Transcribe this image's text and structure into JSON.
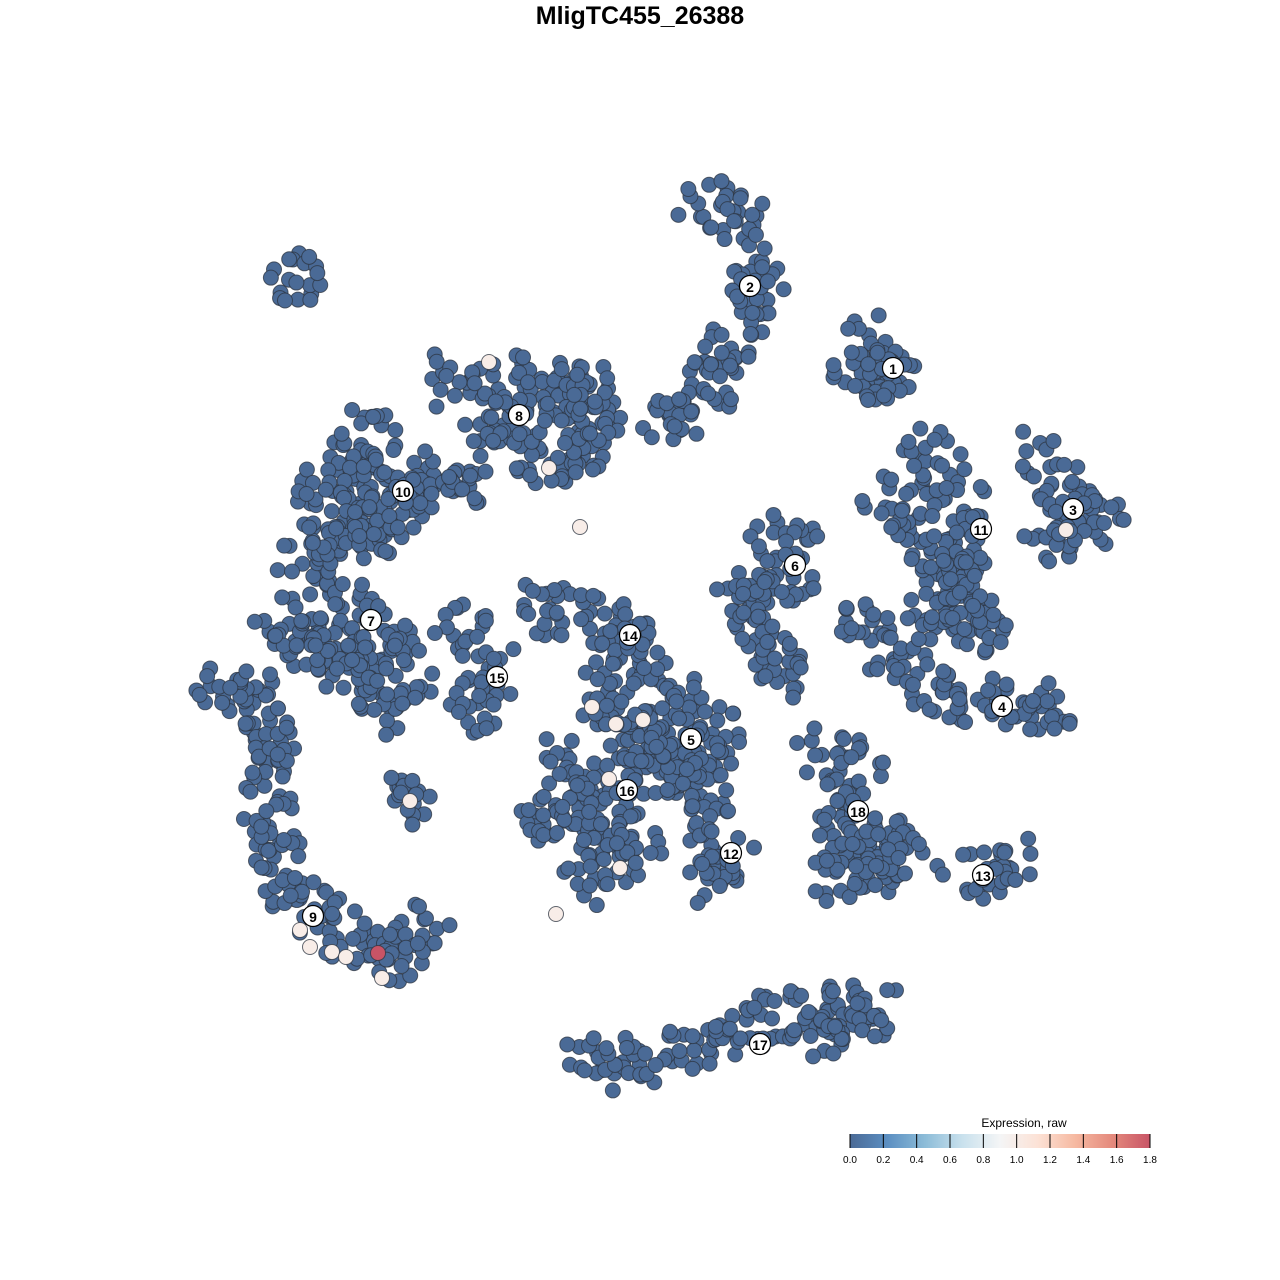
{
  "chart_data": {
    "type": "scatter",
    "title": "MligTC455_26388",
    "xlabel": "",
    "ylabel": "",
    "xlim": [
      -50,
      50
    ],
    "ylim": [
      -50,
      50
    ],
    "grid": false,
    "axes_visible": false,
    "default_value": 0.0,
    "clusters": [
      {
        "label": "1",
        "label_pos": [
          25.3,
          27.2
        ],
        "spine": [
          [
            23,
            31
          ],
          [
            24,
            27
          ],
          [
            26.5,
            25.5
          ],
          [
            22,
            27
          ]
        ]
      },
      {
        "label": "2",
        "label_pos": [
          11,
          35.4
        ],
        "spine": [
          [
            5,
            44.5
          ],
          [
            10,
            42
          ],
          [
            12,
            35
          ],
          [
            9,
            29
          ],
          [
            6,
            23.5
          ],
          [
            2.5,
            22.5
          ]
        ]
      },
      {
        "label": "3",
        "label_pos": [
          43.3,
          13.1
        ],
        "spine": [
          [
            39,
            19
          ],
          [
            41,
            17
          ],
          [
            43.5,
            13
          ],
          [
            46.5,
            12
          ],
          [
            41,
            10.5
          ]
        ]
      },
      {
        "label": "4",
        "label_pos": [
          36.2,
          -6.6
        ],
        "spine": [
          [
            22,
            3
          ],
          [
            25,
            -1.5
          ],
          [
            30,
            -5
          ],
          [
            36,
            -7
          ],
          [
            41.5,
            -7
          ]
        ]
      },
      {
        "label": "5",
        "label_pos": [
          5.1,
          -9.9
        ],
        "spine": [
          [
            0,
            -4
          ],
          [
            5,
            -6
          ],
          [
            8,
            -10
          ],
          [
            4,
            -14
          ],
          [
            -2,
            -12
          ],
          [
            1,
            -9
          ],
          [
            7,
            -16
          ],
          [
            -3,
            -7
          ]
        ]
      },
      {
        "label": "6",
        "label_pos": [
          15.5,
          7.5
        ],
        "spine": [
          [
            12,
            11
          ],
          [
            16,
            9
          ],
          [
            14,
            4
          ],
          [
            10,
            5
          ],
          [
            12,
            0
          ],
          [
            15,
            -3
          ]
        ]
      },
      {
        "label": "7",
        "label_pos": [
          -26.9,
          2
        ],
        "spine": [
          [
            -34,
            8
          ],
          [
            -27,
            2
          ],
          [
            -23,
            -4
          ],
          [
            -25,
            -7
          ],
          [
            -36,
            2
          ],
          [
            -28,
            -2
          ]
        ]
      },
      {
        "label": "8",
        "label_pos": [
          -12.1,
          22.5
        ],
        "spine": [
          [
            -20,
            26
          ],
          [
            -12,
            26
          ],
          [
            -5,
            26
          ],
          [
            -4,
            19
          ],
          [
            -10,
            17
          ],
          [
            -15,
            21
          ],
          [
            -7,
            22
          ]
        ]
      },
      {
        "label": "9",
        "label_pos": [
          -32.7,
          -27.6
        ],
        "spine": [
          [
            -35,
            -26
          ],
          [
            -30,
            -29
          ],
          [
            -24,
            -32
          ],
          [
            -21.5,
            -29
          ]
        ]
      },
      {
        "label": "10",
        "label_pos": [
          -23.7,
          14.9
        ],
        "spine": [
          [
            -26,
            22
          ],
          [
            -32,
            15
          ],
          [
            -24,
            17
          ],
          [
            -17,
            16
          ],
          [
            -33,
            9
          ],
          [
            -26,
            11
          ]
        ]
      },
      {
        "label": "11",
        "label_pos": [
          34.1,
          11.1
        ],
        "spine": [
          [
            28,
            20
          ],
          [
            31,
            16
          ],
          [
            33,
            11
          ],
          [
            32,
            6
          ],
          [
            29,
            2
          ],
          [
            35,
            1
          ],
          [
            25,
            14
          ]
        ]
      },
      {
        "label": "12",
        "label_pos": [
          9.1,
          -21.3
        ],
        "spine": [
          [
            6,
            -18
          ],
          [
            9,
            -21
          ],
          [
            7,
            -24
          ]
        ]
      },
      {
        "label": "13",
        "label_pos": [
          34.3,
          -23.5
        ],
        "spine": [
          [
            32,
            -24
          ],
          [
            35,
            -23.5
          ],
          [
            37,
            -22
          ]
        ]
      },
      {
        "label": "14",
        "label_pos": [
          -1,
          0.5
        ],
        "spine": [
          [
            -11,
            3
          ],
          [
            -4,
            3
          ],
          [
            0,
            0
          ],
          [
            -3,
            -2
          ]
        ]
      },
      {
        "label": "15",
        "label_pos": [
          -14.3,
          -3.7
        ],
        "spine": [
          [
            -18,
            1.5
          ],
          [
            -15,
            -1
          ],
          [
            -14.5,
            -4
          ],
          [
            -16.5,
            -7
          ]
        ]
      },
      {
        "label": "16",
        "label_pos": [
          -1.3,
          -15
        ],
        "spine": [
          [
            -8,
            -12
          ],
          [
            -2,
            -15
          ],
          [
            -10,
            -18
          ],
          [
            -4,
            -19
          ],
          [
            0,
            -20
          ],
          [
            -5,
            -24
          ]
        ]
      },
      {
        "label": "17",
        "label_pos": [
          12,
          -40.4
        ],
        "spine": [
          [
            -6,
            -42.5
          ],
          [
            2,
            -42
          ],
          [
            8,
            -40
          ],
          [
            15,
            -37
          ],
          [
            24,
            -37
          ],
          [
            18,
            -39
          ]
        ]
      },
      {
        "label": "18",
        "label_pos": [
          21.8,
          -17.1
        ],
        "spine": [
          [
            17,
            -11
          ],
          [
            22,
            -13
          ],
          [
            20,
            -18
          ],
          [
            24,
            -23
          ],
          [
            26.5,
            -19
          ],
          [
            19.5,
            -24
          ]
        ]
      },
      {
        "label": "",
        "label_pos": null,
        "spine": [
          [
            -37,
            -4
          ],
          [
            -37,
            -12
          ],
          [
            -37,
            -19
          ],
          [
            -35.5,
            -24
          ]
        ]
      },
      {
        "label": "",
        "label_pos": null,
        "spine": [
          [
            -35,
            36.5
          ],
          [
            -34.5,
            36
          ]
        ]
      },
      {
        "label": "",
        "label_pos": null,
        "spine": [
          [
            -42,
            -5
          ],
          [
            -41.5,
            -4.6
          ]
        ]
      },
      {
        "label": "",
        "label_pos": null,
        "spine": [
          [
            -23,
            -16.5
          ],
          [
            -23.5,
            -16
          ]
        ]
      }
    ],
    "expressing_cells": [
      {
        "x": -15.1,
        "y": 27.8,
        "value": 1.0
      },
      {
        "x": -9.1,
        "y": 17.2,
        "value": 1.0
      },
      {
        "x": -6.0,
        "y": 11.3,
        "value": 1.0
      },
      {
        "x": 42.6,
        "y": 11.0,
        "value": 1.0
      },
      {
        "x": -4.8,
        "y": -6.7,
        "value": 1.0
      },
      {
        "x": -2.4,
        "y": -8.4,
        "value": 1.0
      },
      {
        "x": 0.3,
        "y": -8.0,
        "value": 1.0
      },
      {
        "x": -3.1,
        "y": -13.9,
        "value": 1.0
      },
      {
        "x": -2.0,
        "y": -22.8,
        "value": 1.0
      },
      {
        "x": -8.4,
        "y": -27.4,
        "value": 1.0
      },
      {
        "x": -23.0,
        "y": -16.1,
        "value": 1.0
      },
      {
        "x": -34.0,
        "y": -29.0,
        "value": 1.0
      },
      {
        "x": -33.0,
        "y": -30.7,
        "value": 1.0
      },
      {
        "x": -30.8,
        "y": -31.2,
        "value": 1.0
      },
      {
        "x": -29.4,
        "y": -31.7,
        "value": 1.0
      },
      {
        "x": -25.8,
        "y": -33.8,
        "value": 1.0
      },
      {
        "x": -26.2,
        "y": -31.3,
        "value": 1.8
      }
    ],
    "legend": {
      "title": "Expression, raw",
      "placement": "bottom-right",
      "ticks": [
        "0.0",
        "0.2",
        "0.4",
        "0.6",
        "0.8",
        "1.0",
        "1.2",
        "1.4",
        "1.6",
        "1.8"
      ],
      "range": [
        0,
        1.8
      ],
      "colors": [
        "#4a6a96",
        "#5b8fc2",
        "#8cbcd8",
        "#c9e1ed",
        "#f4f5f6",
        "#fce2d6",
        "#f6b9a1",
        "#e4897c",
        "#c85466"
      ]
    }
  }
}
